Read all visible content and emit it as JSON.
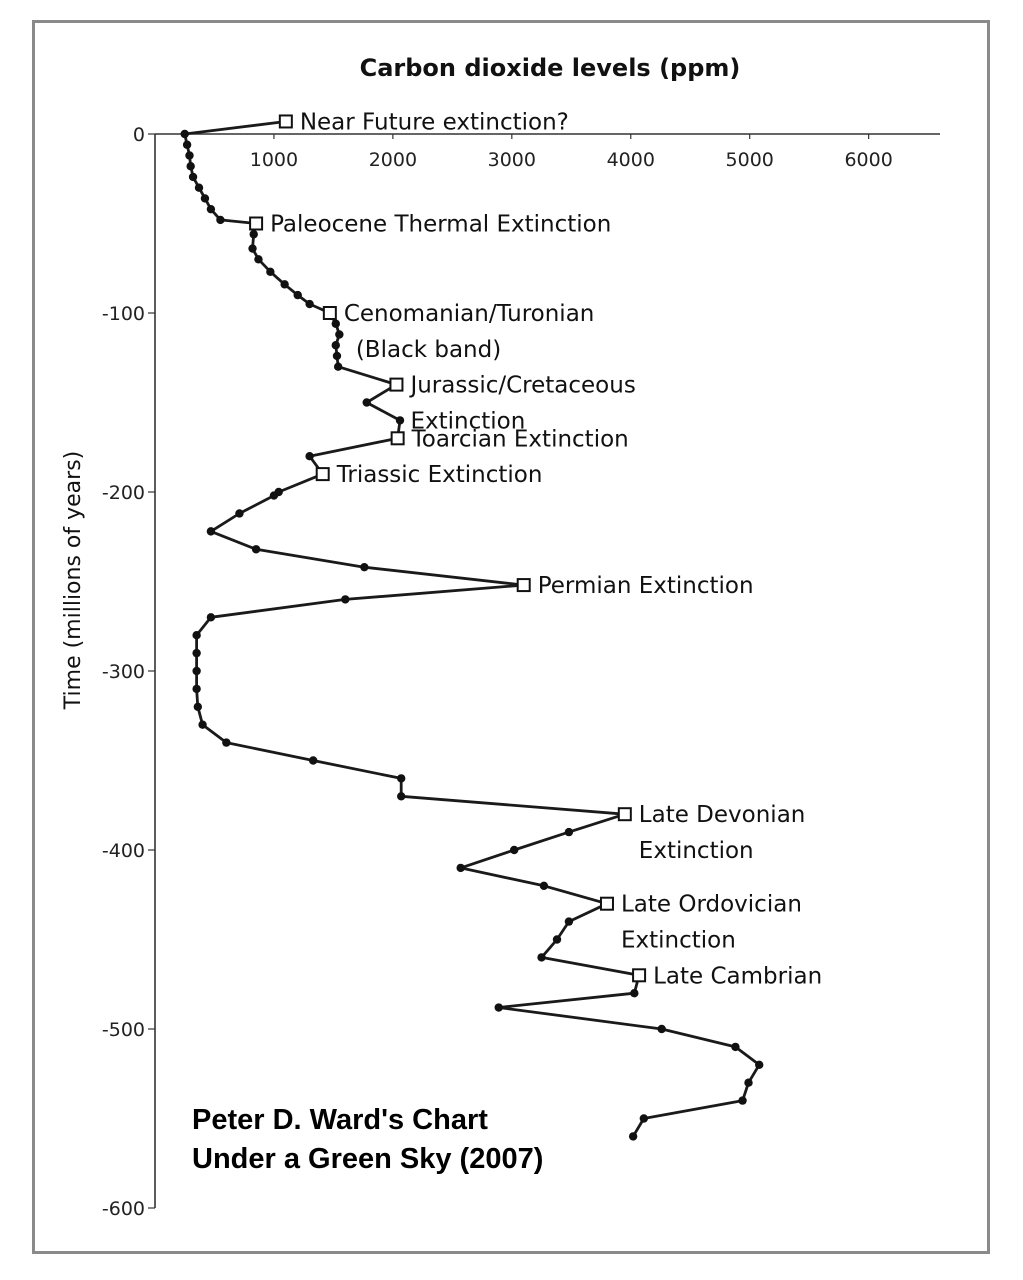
{
  "chart_data": {
    "type": "line",
    "title": "Carbon dioxide levels (ppm)",
    "xlabel": "Carbon dioxide levels (ppm)",
    "ylabel": "Time (millions of years)",
    "xlim": [
      0,
      6600
    ],
    "ylim": [
      -600,
      0
    ],
    "x_ticks": [
      "1000",
      "2000",
      "3000",
      "4000",
      "5000",
      "6000"
    ],
    "y_ticks": [
      "0",
      "-100",
      "-200",
      "-300",
      "-400",
      "-500",
      "-600"
    ],
    "grid": false,
    "series": [
      {
        "name": "CO2",
        "points": [
          [
            1100,
            7
          ],
          [
            250,
            0
          ],
          [
            270,
            -6
          ],
          [
            290,
            -12
          ],
          [
            300,
            -18
          ],
          [
            320,
            -24
          ],
          [
            370,
            -30
          ],
          [
            420,
            -36
          ],
          [
            470,
            -42
          ],
          [
            550,
            -48
          ],
          [
            850,
            -50
          ],
          [
            830,
            -56
          ],
          [
            820,
            -64
          ],
          [
            870,
            -70
          ],
          [
            970,
            -77
          ],
          [
            1090,
            -84
          ],
          [
            1200,
            -90
          ],
          [
            1300,
            -95
          ],
          [
            1470,
            -100
          ],
          [
            1520,
            -106
          ],
          [
            1550,
            -112
          ],
          [
            1520,
            -118
          ],
          [
            1530,
            -124
          ],
          [
            1540,
            -130
          ],
          [
            2030,
            -140
          ],
          [
            1780,
            -150
          ],
          [
            2060,
            -160
          ],
          [
            2040,
            -170
          ],
          [
            1300,
            -180
          ],
          [
            1410,
            -190
          ],
          [
            1040,
            -200
          ],
          [
            1000,
            -202
          ],
          [
            710,
            -212
          ],
          [
            470,
            -222
          ],
          [
            850,
            -232
          ],
          [
            1760,
            -242
          ],
          [
            3100,
            -252
          ],
          [
            1600,
            -260
          ],
          [
            470,
            -270
          ],
          [
            350,
            -280
          ],
          [
            350,
            -290
          ],
          [
            350,
            -300
          ],
          [
            350,
            -310
          ],
          [
            360,
            -320
          ],
          [
            400,
            -330
          ],
          [
            600,
            -340
          ],
          [
            1330,
            -350
          ],
          [
            2070,
            -360
          ],
          [
            2070,
            -370
          ],
          [
            3950,
            -380
          ],
          [
            3480,
            -390
          ],
          [
            3020,
            -400
          ],
          [
            2570,
            -410
          ],
          [
            3270,
            -420
          ],
          [
            3800,
            -430
          ],
          [
            3480,
            -440
          ],
          [
            3380,
            -450
          ],
          [
            3250,
            -460
          ],
          [
            4070,
            -470
          ],
          [
            4030,
            -480
          ],
          [
            2890,
            -488
          ],
          [
            4260,
            -500
          ],
          [
            4880,
            -510
          ],
          [
            5080,
            -520
          ],
          [
            4990,
            -530
          ],
          [
            4940,
            -540
          ],
          [
            4110,
            -550
          ],
          [
            4020,
            -560
          ]
        ]
      }
    ],
    "annotations": [
      {
        "key": "near-future",
        "lines": [
          "Near Future extinction?"
        ],
        "x": 1100,
        "y": 7
      },
      {
        "key": "paleocene",
        "lines": [
          "Paleocene Thermal Extinction"
        ],
        "x": 850,
        "y": -50
      },
      {
        "key": "cenomanian",
        "lines": [
          "Cenomanian/Turonian",
          "(Black band)"
        ],
        "x": 1470,
        "y": -100
      },
      {
        "key": "jurassic",
        "lines": [
          "Jurassic/Cretaceous",
          "Extinction"
        ],
        "x": 2030,
        "y": -140
      },
      {
        "key": "toarcian",
        "lines": [
          "Toarcian Extinction"
        ],
        "x": 2040,
        "y": -170
      },
      {
        "key": "triassic",
        "lines": [
          "Triassic Extinction"
        ],
        "x": 1410,
        "y": -190
      },
      {
        "key": "permian",
        "lines": [
          "Permian Extinction"
        ],
        "x": 3100,
        "y": -252
      },
      {
        "key": "devonian",
        "lines": [
          "Late Devonian",
          "Extinction"
        ],
        "x": 3950,
        "y": -380
      },
      {
        "key": "ordovician",
        "lines": [
          "Late Ordovician",
          "Extinction"
        ],
        "x": 3800,
        "y": -430
      },
      {
        "key": "cambrian",
        "lines": [
          "Late Cambrian"
        ],
        "x": 4070,
        "y": -470
      }
    ]
  },
  "credit": {
    "line1": "Peter D. Ward's Chart",
    "line2": "Under a Green Sky (2007)"
  },
  "colors": {
    "line": "#1a1a1a",
    "marker_filled": "#111111",
    "marker_open_fill": "#ffffff",
    "frame": "#8a8a8a"
  }
}
